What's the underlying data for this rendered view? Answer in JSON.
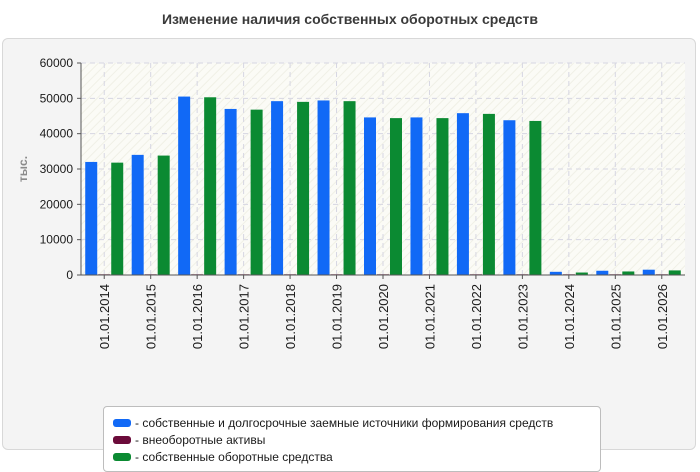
{
  "chart_data": {
    "type": "bar",
    "title": "Изменение наличия собственных оборотных средств",
    "ylabel": "тыс.",
    "xlabel": "",
    "ylim": [
      0,
      60000
    ],
    "yticks": [
      0,
      10000,
      20000,
      30000,
      40000,
      50000,
      60000
    ],
    "grid": true,
    "legend_position": "bottom",
    "categories": [
      "01.01.2014",
      "01.01.2015",
      "01.01.2016",
      "01.01.2017",
      "01.01.2018",
      "01.01.2019",
      "01.01.2020",
      "01.01.2021",
      "01.01.2022",
      "01.01.2023",
      "01.01.2024",
      "01.01.2025",
      "01.01.2026"
    ],
    "series": [
      {
        "name": "- собственные и долгосрочные заемные источники формирования средств",
        "color": "#1169f6",
        "values": [
          32000,
          34000,
          50500,
          47000,
          49200,
          49400,
          44600,
          44600,
          45800,
          43800,
          900,
          1200,
          1500
        ]
      },
      {
        "name": "- внеоборотные активы",
        "color": "#6b0b3a",
        "values": [
          200,
          200,
          200,
          200,
          200,
          200,
          200,
          200,
          200,
          200,
          200,
          200,
          200
        ]
      },
      {
        "name": "- собственные оборотные средства",
        "color": "#0b8a32",
        "values": [
          31800,
          33800,
          50300,
          46800,
          49000,
          49200,
          44400,
          44400,
          45600,
          43600,
          700,
          1000,
          1300
        ]
      }
    ]
  }
}
